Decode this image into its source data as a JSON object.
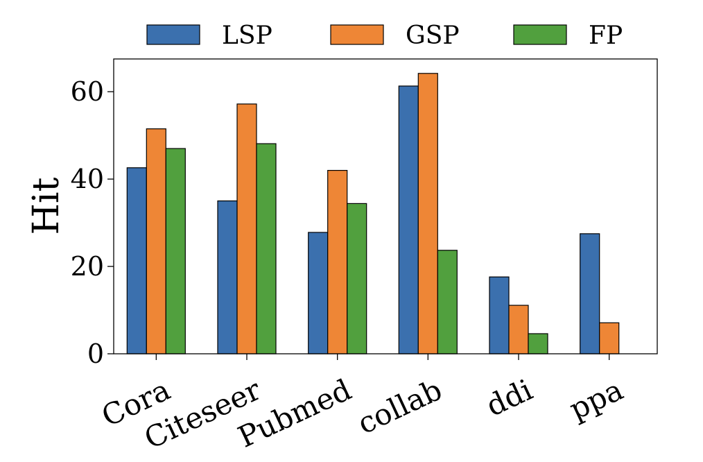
{
  "chart_data": {
    "type": "bar",
    "title": "",
    "xlabel": "",
    "ylabel": "Hit",
    "categories": [
      "Cora",
      "Citeseer",
      "Pubmed",
      "collab",
      "ddi",
      "ppa"
    ],
    "series": [
      {
        "name": "LSP",
        "color": "#3b70ae",
        "values": [
          42.6,
          35.0,
          27.8,
          61.3,
          17.6,
          27.5
        ]
      },
      {
        "name": "GSP",
        "color": "#ee8636",
        "values": [
          51.5,
          57.2,
          42.0,
          64.2,
          11.1,
          7.1
        ]
      },
      {
        "name": "FP",
        "color": "#51a03e",
        "values": [
          47.0,
          48.1,
          34.4,
          23.7,
          4.6,
          0.0
        ]
      }
    ],
    "ylim": [
      0,
      67.5
    ],
    "yticks": [
      0,
      20,
      40,
      60
    ],
    "grid": false,
    "legend_position": "top"
  }
}
